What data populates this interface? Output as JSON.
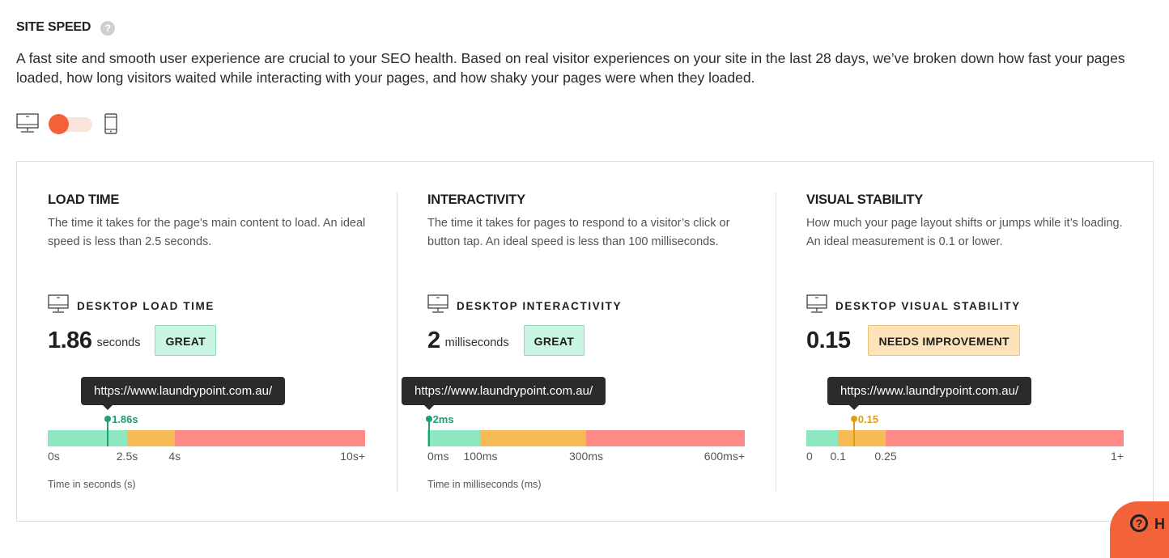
{
  "section": {
    "title": "SITE SPEED",
    "help_glyph": "?",
    "description": "A fast site and smooth user experience are crucial to your SEO health. Based on real visitor experiences on your site in the last 28 days, we’ve broken down how fast your pages loaded, how long visitors waited while interacting with your pages, and how shaky your pages were when they loaded."
  },
  "device_toggle": {
    "selected": "desktop",
    "left_icon": "desktop-icon",
    "right_icon": "mobile-icon"
  },
  "metrics": [
    {
      "title": "LOAD TIME",
      "description": "The time it takes for the page’s main content to load. An ideal speed is less than 2.5 seconds.",
      "sub_title": "DESKTOP LOAD TIME",
      "value": "1.86",
      "unit": "seconds",
      "badge": "GREAT",
      "status": "great",
      "tooltip": "https://www.laundrypoint.com.au/",
      "marker_label": "1.86s",
      "marker_fraction": 0.189,
      "marker_color": "#1f9e6e",
      "segments": [
        {
          "from": 0,
          "to": 0.25,
          "color": "#8de7c0"
        },
        {
          "from": 0.25,
          "to": 0.4,
          "color": "#f5bb55"
        },
        {
          "from": 0.4,
          "to": 1.0,
          "color": "#fd8a87"
        }
      ],
      "ticks": [
        {
          "label": "0s",
          "pos": 0,
          "align": "start"
        },
        {
          "label": "2.5s",
          "pos": 0.25,
          "align": "center"
        },
        {
          "label": "4s",
          "pos": 0.4,
          "align": "center"
        },
        {
          "label": "10s+",
          "pos": 1.0,
          "align": "end"
        }
      ],
      "axis_caption": "Time in seconds (s)"
    },
    {
      "title": "INTERACTIVITY",
      "description": "The time it takes for pages to respond to a visitor’s click or button tap. An ideal speed is less than 100 milliseconds.",
      "sub_title": "DESKTOP INTERACTIVITY",
      "value": "2",
      "unit": "milliseconds",
      "badge": "GREAT",
      "status": "great",
      "tooltip": "https://www.laundrypoint.com.au/",
      "marker_label": "2ms",
      "marker_fraction": 0.004,
      "marker_color": "#1f9e6e",
      "segments": [
        {
          "from": 0,
          "to": 0.167,
          "color": "#8de7c0"
        },
        {
          "from": 0.167,
          "to": 0.5,
          "color": "#f5bb55"
        },
        {
          "from": 0.5,
          "to": 1.0,
          "color": "#fd8a87"
        }
      ],
      "ticks": [
        {
          "label": "0ms",
          "pos": 0,
          "align": "start"
        },
        {
          "label": "100ms",
          "pos": 0.167,
          "align": "center"
        },
        {
          "label": "300ms",
          "pos": 0.5,
          "align": "center"
        },
        {
          "label": "600ms+",
          "pos": 1.0,
          "align": "end"
        }
      ],
      "axis_caption": "Time in milliseconds (ms)"
    },
    {
      "title": "VISUAL STABILITY",
      "description": "How much your page layout shifts or jumps while it’s loading. An ideal measurement is 0.1 or lower.",
      "sub_title": "DESKTOP VISUAL STABILITY",
      "value": "0.15",
      "unit": "",
      "badge": "NEEDS IMPROVEMENT",
      "status": "needs",
      "tooltip": "https://www.laundrypoint.com.au/",
      "marker_label": "0.15",
      "marker_fraction": 0.15,
      "marker_color": "#e39c12",
      "segments": [
        {
          "from": 0,
          "to": 0.1,
          "color": "#8de7c0"
        },
        {
          "from": 0.1,
          "to": 0.25,
          "color": "#f5bb55"
        },
        {
          "from": 0.25,
          "to": 1.0,
          "color": "#fd8a87"
        }
      ],
      "ticks": [
        {
          "label": "0",
          "pos": 0,
          "align": "start"
        },
        {
          "label": "0.1",
          "pos": 0.1,
          "align": "center"
        },
        {
          "label": "0.25",
          "pos": 0.25,
          "align": "center"
        },
        {
          "label": "1+",
          "pos": 1.0,
          "align": "end"
        }
      ],
      "axis_caption": ""
    }
  ],
  "help_button": {
    "glyph": "?",
    "label": "H"
  }
}
